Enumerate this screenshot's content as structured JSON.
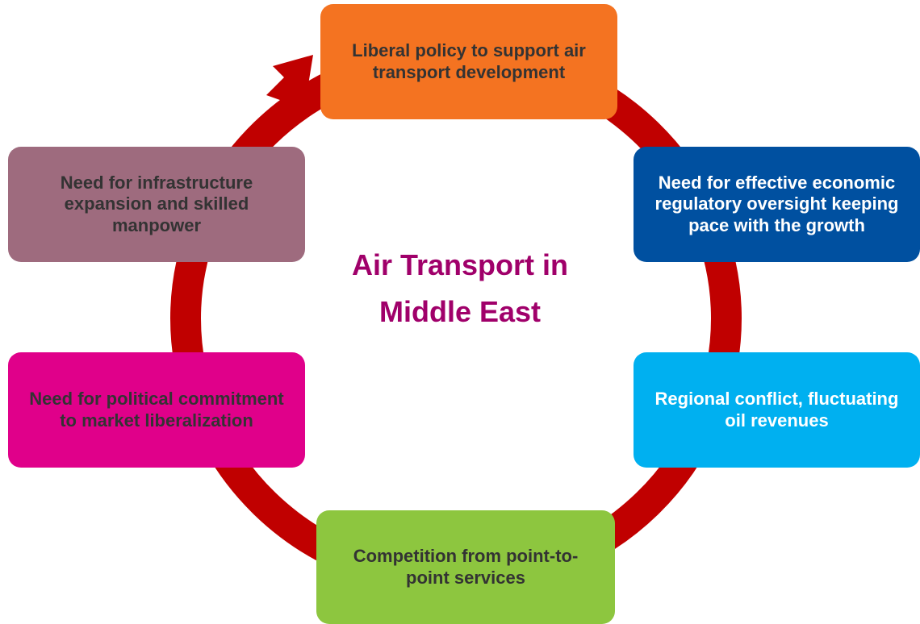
{
  "center": {
    "title": "Air Transport in Middle East"
  },
  "nodes": [
    {
      "label": "Liberal policy to support air transport development"
    },
    {
      "label": "Need for effective economic regulatory oversight keeping pace with the growth"
    },
    {
      "label": "Regional conflict, fluctuating oil revenues"
    },
    {
      "label": "Competition from point-to-point services"
    },
    {
      "label": "Need for political commitment to market liberalization"
    },
    {
      "label": "Need for infrastructure expansion and skilled manpower"
    }
  ]
}
